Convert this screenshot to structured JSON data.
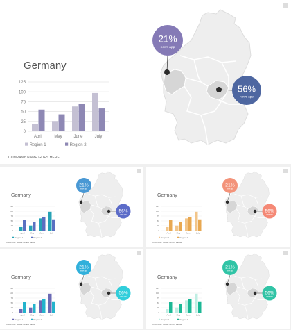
{
  "colors": {
    "main": {
      "r1": "#c4c0d3",
      "r2": "#8e88b4",
      "circleA": "#7b6fb0",
      "circleB": "#3f5a99"
    },
    "t1": {
      "r1": "#26a2b5",
      "r2": "#5a6fc1",
      "circleA": "#3a8fd0",
      "circleB": "#4e5fc4"
    },
    "t2": {
      "r1": "#f2c58a",
      "r2": "#e8a851",
      "circleA": "#f28a6f",
      "circleB": "#f47f6a"
    },
    "t3": {
      "r1": "#6b6ab5",
      "r2": "#23b3cc",
      "circleA": "#1fa9d8",
      "circleB": "#1fcad8"
    },
    "t4": {
      "r1": "#bfeee3",
      "r2": "#1cb896",
      "circleA": "#1fbf9e",
      "circleB": "#1fbf9e"
    }
  },
  "main": {
    "title": "Germany",
    "company": "COMPANY NAME GOES HERE",
    "labelA": "21%",
    "subA": "news app",
    "labelB": "56%",
    "subB": "news app"
  },
  "thumb": {
    "title": "Germany",
    "company": "COMPANY NAME GOES HERE",
    "labelA": "21%",
    "subA": "news app",
    "labelB": "56%",
    "subB": "news app"
  },
  "chart_data": {
    "type": "bar",
    "categories": [
      "April",
      "May",
      "June",
      "July"
    ],
    "series": [
      {
        "name": "Region 1",
        "values": [
          18,
          26,
          63,
          97
        ]
      },
      {
        "name": "Region 2",
        "values": [
          55,
          43,
          70,
          58
        ]
      }
    ],
    "yticks": [
      0,
      25,
      50,
      75,
      100,
      125
    ],
    "ylim": [
      0,
      125
    ],
    "legend": "bottom"
  }
}
